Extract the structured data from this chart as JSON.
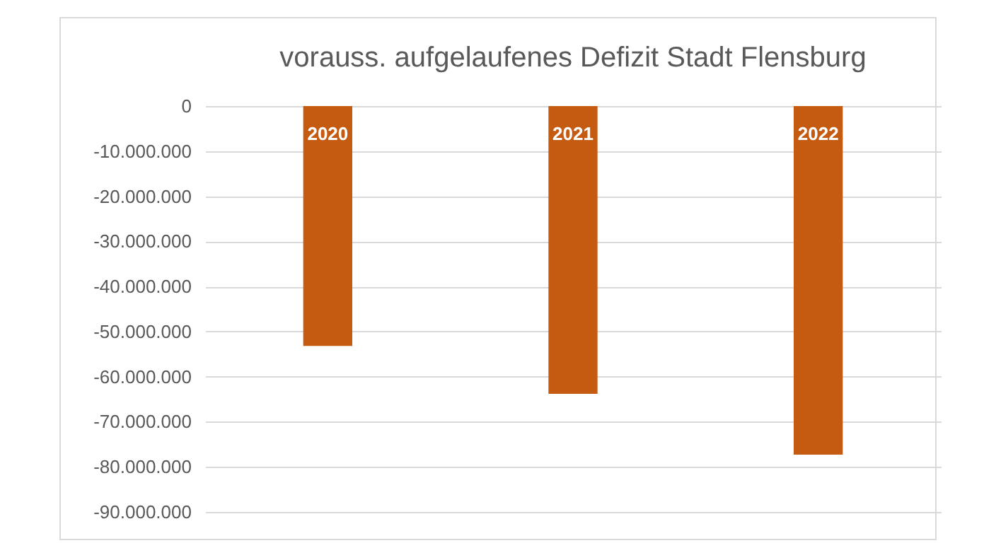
{
  "chart_data": {
    "type": "bar",
    "title": "vorauss. aufgelaufenes Defizit Stadt Flensburg",
    "categories": [
      "2020",
      "2021",
      "2022"
    ],
    "values": [
      -53200000,
      -63800000,
      -77300000
    ],
    "color": "#c55a11",
    "ylim": [
      -90000000,
      0
    ],
    "yticks": [
      {
        "value": 0,
        "label": "0"
      },
      {
        "value": -10000000,
        "label": "-10.000.000"
      },
      {
        "value": -20000000,
        "label": "-20.000.000"
      },
      {
        "value": -30000000,
        "label": "-30.000.000"
      },
      {
        "value": -40000000,
        "label": "-40.000.000"
      },
      {
        "value": -50000000,
        "label": "-50.000.000"
      },
      {
        "value": -60000000,
        "label": "-60.000.000"
      },
      {
        "value": -70000000,
        "label": "-70.000.000"
      },
      {
        "value": -80000000,
        "label": "-80.000.000"
      },
      {
        "value": -90000000,
        "label": "-90.000.000"
      }
    ],
    "grid": "y"
  }
}
